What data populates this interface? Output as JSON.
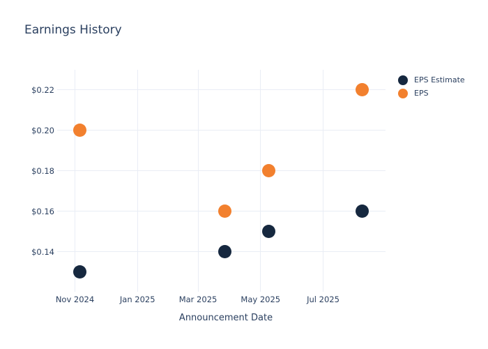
{
  "title": "Earnings History",
  "x_axis": {
    "title": "Announcement Date",
    "ticks": [
      {
        "label": "Nov 2024",
        "date": "2024-11-01"
      },
      {
        "label": "Jan 2025",
        "date": "2025-01-01"
      },
      {
        "label": "Mar 2025",
        "date": "2025-03-01"
      },
      {
        "label": "May 2025",
        "date": "2025-05-01"
      },
      {
        "label": "Jul 2025",
        "date": "2025-07-01"
      }
    ]
  },
  "y_axis": {
    "ticks": [
      {
        "label": "$0.14",
        "value": 0.14
      },
      {
        "label": "$0.16",
        "value": 0.16
      },
      {
        "label": "$0.18",
        "value": 0.18
      },
      {
        "label": "$0.20",
        "value": 0.2
      },
      {
        "label": "$0.22",
        "value": 0.22
      }
    ],
    "range": [
      0.122,
      0.23
    ]
  },
  "legend": {
    "items": [
      {
        "label": "EPS Estimate",
        "color": "#16283f"
      },
      {
        "label": "EPS",
        "color": "#f2802e"
      }
    ]
  },
  "colors": {
    "eps_estimate": "#16283f",
    "eps": "#f2802e",
    "gridline": "#e9edf5",
    "text": "#2a3f5f",
    "background": "#ffffff"
  },
  "chart_data": {
    "type": "scatter",
    "title": "Earnings History",
    "xlabel": "Announcement Date",
    "ylabel": "",
    "x": [
      "2024-11-06",
      "2025-03-27",
      "2025-05-09",
      "2025-08-08"
    ],
    "x_note": "dates estimated from marker positions; axis labeled in 2-month ticks",
    "series": [
      {
        "name": "EPS Estimate",
        "color": "#16283f",
        "values": [
          0.13,
          0.14,
          0.15,
          0.16
        ]
      },
      {
        "name": "EPS",
        "color": "#f2802e",
        "values": [
          0.2,
          0.16,
          0.18,
          0.22
        ]
      }
    ],
    "x_ticks": [
      "Nov 2024",
      "Jan 2025",
      "Mar 2025",
      "May 2025",
      "Jul 2025"
    ],
    "y_ticks": [
      "$0.14",
      "$0.16",
      "$0.18",
      "$0.20",
      "$0.22"
    ],
    "y_range": [
      0.122,
      0.23
    ],
    "grid": true,
    "legend_position": "top-right",
    "marker_size_px": 19
  }
}
